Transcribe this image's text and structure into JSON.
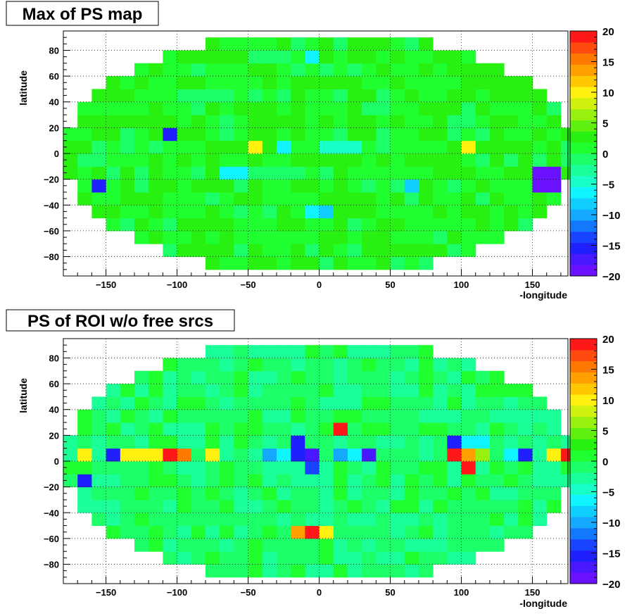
{
  "chart_data": [
    {
      "type": "heatmap",
      "title": "Max of PS map",
      "xlabel": "-longitude",
      "ylabel": "latitude",
      "xlim": [
        -180,
        175
      ],
      "ylim": [
        -95,
        95
      ],
      "bin_width": 10,
      "bin_height": 10,
      "z_range": [
        -20,
        20
      ],
      "x_ticks": [
        -150,
        -100,
        -50,
        0,
        50,
        100,
        150
      ],
      "y_ticks": [
        -80,
        -60,
        -40,
        -20,
        0,
        20,
        40,
        60,
        80
      ],
      "z_ticks": [
        -20,
        -15,
        -10,
        -5,
        0,
        5,
        10,
        15,
        20
      ],
      "grid": true,
      "grid_note": "z values estimated from colour; 2x10 deg bins, row 0 = latitude 90 (top)",
      "grid_rows": [
        "--------------------------------------------------------------------------------------------------------------------------------------------------------------------------------------------------------------------------------------------------------------------------------------------------------------------------------------------------------------------------------------------",
        "-"
      ]
    },
    {
      "type": "heatmap",
      "title": "PS of ROI w/o free srcs",
      "xlabel": "-longitude",
      "ylabel": "latitude",
      "xlim": [
        -180,
        175
      ],
      "ylim": [
        -95,
        95
      ],
      "z_range": [
        -20,
        20
      ],
      "x_ticks": [
        -150,
        -100,
        -50,
        0,
        50,
        100,
        150
      ],
      "y_ticks": [
        -80,
        -60,
        -40,
        -20,
        0,
        20,
        40,
        60,
        80
      ],
      "z_ticks": [
        -20,
        -15,
        -10,
        -5,
        0,
        5,
        10,
        15,
        20
      ],
      "grid": true
    }
  ],
  "palette": [
    "#6a11ff",
    "#4a18ff",
    "#2020ff",
    "#1844ff",
    "#1478ff",
    "#14a8ff",
    "#10cfff",
    "#10f4ff",
    "#18ffc8",
    "#1aff98",
    "#1dff68",
    "#20ff30",
    "#28f010",
    "#60f010",
    "#98f010",
    "#d0f010",
    "#fff010",
    "#ffc800",
    "#ffa000",
    "#ff7800",
    "#ff4a10",
    "#ff1818"
  ]
}
